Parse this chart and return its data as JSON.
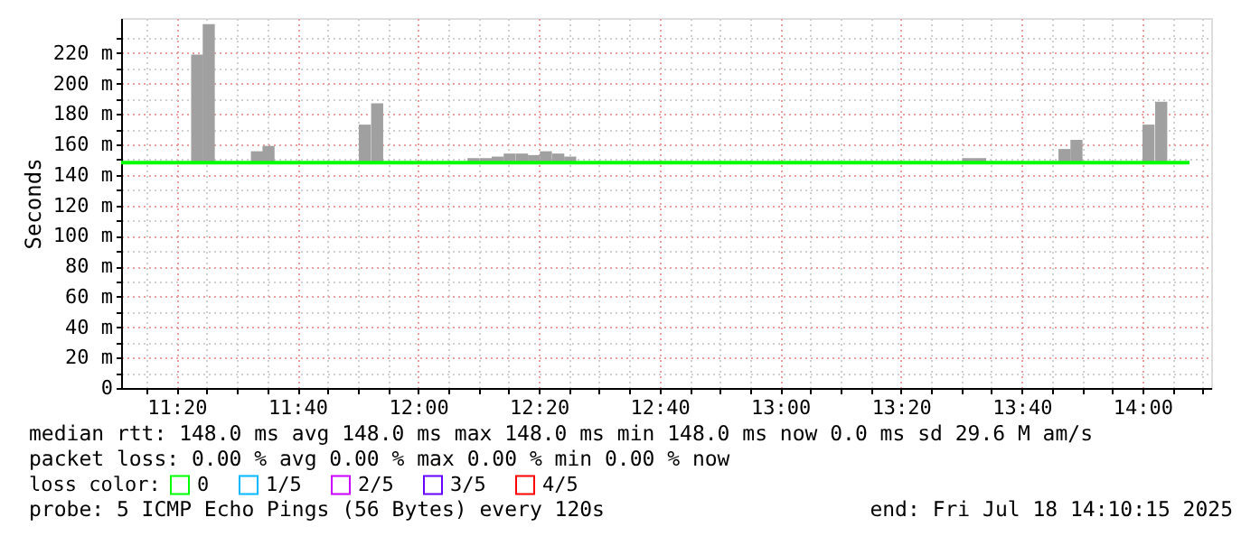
{
  "chart_data": {
    "type": "bar",
    "ylabel": "Seconds",
    "legend_title": "loss color:",
    "legend": "bottom",
    "grid": true,
    "xlim": [
      11.18,
      14.19
    ],
    "xticks": [
      {
        "value": 11.25,
        "label": null
      },
      {
        "value": 11.3333,
        "label": "11:20"
      },
      {
        "value": 11.4167,
        "label": null
      },
      {
        "value": 11.5,
        "label": null
      },
      {
        "value": 11.5833,
        "label": null
      },
      {
        "value": 11.6667,
        "label": "11:40"
      },
      {
        "value": 11.75,
        "label": null
      },
      {
        "value": 11.8333,
        "label": null
      },
      {
        "value": 11.9167,
        "label": null
      },
      {
        "value": 12,
        "label": "12:00"
      },
      {
        "value": 12.0833,
        "label": null
      },
      {
        "value": 12.1667,
        "label": null
      },
      {
        "value": 12.25,
        "label": null
      },
      {
        "value": 12.3333,
        "label": "12:20"
      },
      {
        "value": 12.4167,
        "label": null
      },
      {
        "value": 12.5,
        "label": null
      },
      {
        "value": 12.5833,
        "label": null
      },
      {
        "value": 12.6667,
        "label": "12:40"
      },
      {
        "value": 12.75,
        "label": null
      },
      {
        "value": 12.8333,
        "label": null
      },
      {
        "value": 12.9167,
        "label": null
      },
      {
        "value": 13,
        "label": "13:00"
      },
      {
        "value": 13.0833,
        "label": null
      },
      {
        "value": 13.1667,
        "label": null
      },
      {
        "value": 13.25,
        "label": null
      },
      {
        "value": 13.3333,
        "label": "13:20"
      },
      {
        "value": 13.4167,
        "label": null
      },
      {
        "value": 13.5,
        "label": null
      },
      {
        "value": 13.5833,
        "label": null
      },
      {
        "value": 13.6667,
        "label": "13:40"
      },
      {
        "value": 13.75,
        "label": null
      },
      {
        "value": 13.8333,
        "label": null
      },
      {
        "value": 13.9167,
        "label": null
      },
      {
        "value": 14,
        "label": "14:00"
      },
      {
        "value": 14.0833,
        "label": null
      },
      {
        "value": 14.1667,
        "label": null
      }
    ],
    "ylim": [
      0,
      243
    ],
    "yticks": [
      0,
      {
        "value": 10,
        "label": null
      },
      {
        "value": 20,
        "label": "20 m"
      },
      {
        "value": 30,
        "label": null
      },
      {
        "value": 40,
        "label": "40 m"
      },
      {
        "value": 50,
        "label": null
      },
      {
        "value": 60,
        "label": "60 m"
      },
      {
        "value": 70,
        "label": null
      },
      {
        "value": 80,
        "label": "80 m"
      },
      {
        "value": 90,
        "label": null
      },
      {
        "value": 100,
        "label": "100 m"
      },
      {
        "value": 110,
        "label": null
      },
      {
        "value": 120,
        "label": "120 m"
      },
      {
        "value": 130,
        "label": null
      },
      {
        "value": 140,
        "label": "140 m"
      },
      {
        "value": 150,
        "label": null
      },
      {
        "value": 160,
        "label": "160 m"
      },
      {
        "value": 170,
        "label": null
      },
      {
        "value": 180,
        "label": "180 m"
      },
      {
        "value": 190,
        "label": null
      },
      {
        "value": 200,
        "label": "200 m"
      },
      {
        "value": 210,
        "label": null
      },
      {
        "value": 220,
        "label": "220 m"
      },
      {
        "value": 230,
        "label": null
      }
    ],
    "series": [
      {
        "color": "#a0a0a0",
        "x": [
          11.39,
          11.422,
          11.555,
          11.587,
          11.853,
          11.887,
          12.153,
          12.187,
          12.22,
          12.253,
          12.287,
          12.32,
          12.353,
          12.387,
          12.42,
          13.519,
          13.552,
          13.785,
          13.818,
          14.017,
          14.052
        ],
        "base": [
          148,
          148,
          148,
          148,
          148,
          148,
          148,
          148,
          148,
          148,
          148,
          148,
          148,
          148,
          148,
          148,
          148,
          148,
          148,
          148,
          148
        ],
        "values": [
          71,
          91,
          7.5,
          11,
          25,
          39,
          3,
          3,
          4,
          6,
          6,
          5,
          7.5,
          6,
          4,
          3,
          3,
          9,
          15,
          25,
          40
        ]
      },
      {
        "type": "line",
        "name": "0",
        "color": "#00ff00",
        "x": [
          11.18,
          14.13
        ],
        "values": [
          148,
          148
        ]
      },
      {
        "type": "line",
        "name": "1/5",
        "color": "#00b8ff"
      },
      {
        "type": "line",
        "name": "2/5",
        "color": "#cc00ff"
      },
      {
        "type": "line",
        "name": "3/5",
        "color": "#6600ff"
      },
      {
        "type": "line",
        "name": "4/5",
        "color": "#ff0000"
      }
    ],
    "annotations": [
      "median rtt:  148.0 ms avg  148.0 ms max  148.0 ms min  148.0 ms now  0.0 ms sd  29.6 M am/s",
      "packet loss: 0.00 % avg  0.00 % max  0.00 % min  0.00 % now",
      "probe:       5 ICMP Echo Pings (56 Bytes) every 120s",
      "end: Fri Jul 18 14:10:15 2025"
    ]
  }
}
